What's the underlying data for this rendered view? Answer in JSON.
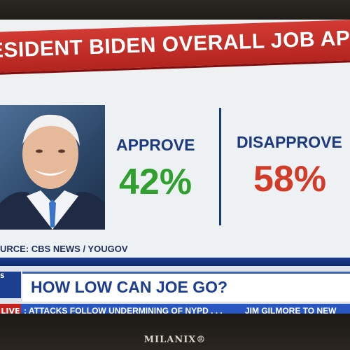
{
  "banner": {
    "title": "ESIDENT BIDEN OVERALL JOB APPROVA"
  },
  "poll": {
    "approve_label": "APPROVE",
    "approve_value": "42%",
    "disapprove_label": "DISAPPROVE",
    "disapprove_value": "58%",
    "source": "URCE: CBS NEWS / YOUGOV"
  },
  "lower_third": {
    "logo": "S",
    "headline": "HOW LOW CAN JOE GO?",
    "live_label": "LIVE",
    "ticker_1": ": ATTACKS FOLLOW UNDERMINING OF NYPD . . .",
    "ticker_2": "JIM GILMORE TO NEW"
  },
  "tv": {
    "brand": "MILANIX®"
  },
  "colors": {
    "banner": "#c7302a",
    "approve": "#2fa02e",
    "disapprove": "#d33a27",
    "label_blue": "#1d3a80",
    "ticker_blue": "#2a56c0"
  }
}
